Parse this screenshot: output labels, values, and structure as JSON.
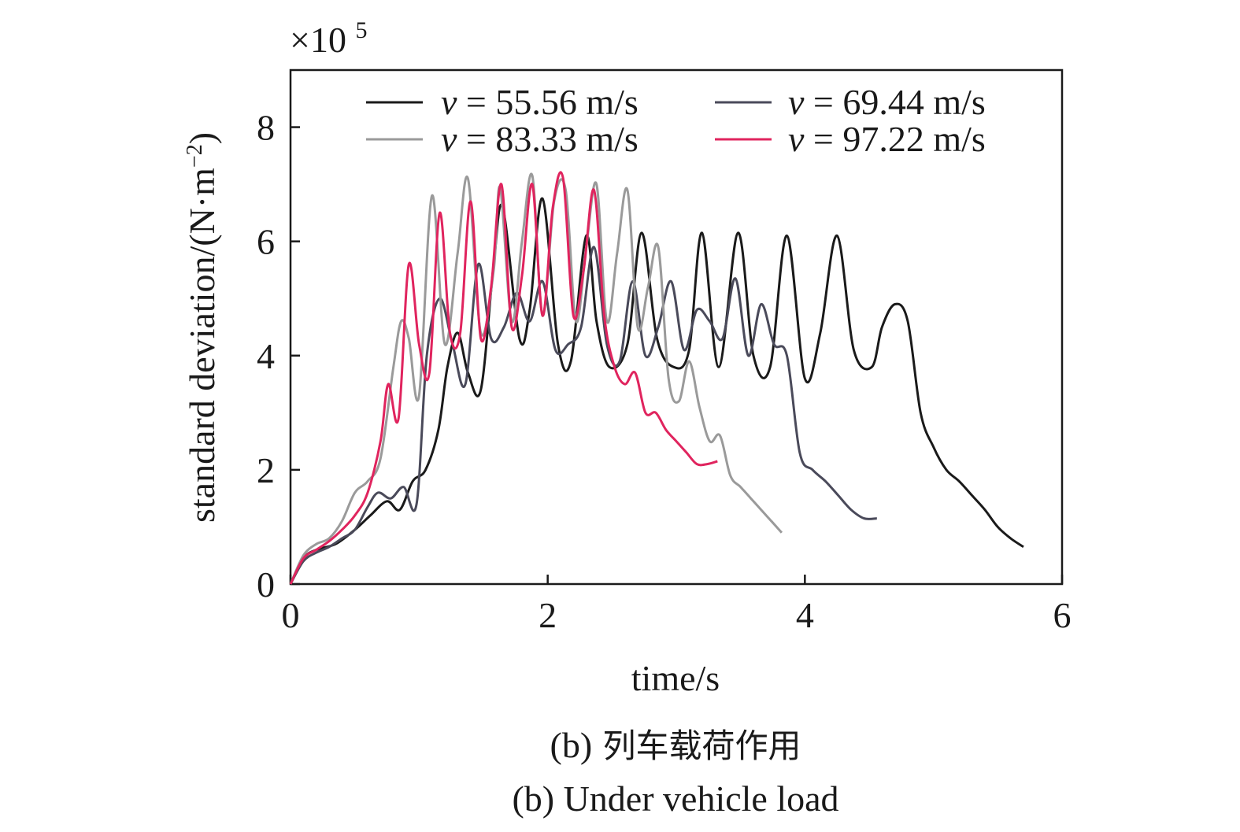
{
  "chart_data": {
    "type": "line",
    "scale_label": "×10",
    "scale_exponent": "5",
    "xlabel": "time/s",
    "ylabel": "standard deviation/(N·m",
    "ylabel_exponent": "−2",
    "ylabel_close": ")",
    "xlim": [
      0,
      6
    ],
    "ylim": [
      0,
      9
    ],
    "xticks": [
      "0",
      "2",
      "4",
      "6"
    ],
    "yticks": [
      "0",
      "2",
      "4",
      "6",
      "8"
    ],
    "xtick_values": [
      0,
      2,
      4,
      6
    ],
    "ytick_values": [
      0,
      2,
      4,
      6,
      8
    ],
    "grid": false,
    "legend_position": "top",
    "legend": [
      {
        "var": "v",
        "text": " = 55.56 m/s",
        "color": "#1a1a1a"
      },
      {
        "var": "v",
        "text": " = 69.44 m/s",
        "color": "#4a4a5a"
      },
      {
        "var": "v",
        "text": " = 83.33 m/s",
        "color": "#9a9a9a"
      },
      {
        "var": "v",
        "text": " = 97.22 m/s",
        "color": "#e0245e"
      }
    ],
    "series": [
      {
        "name": "v = 55.56 m/s",
        "color": "#1a1a1a",
        "x": [
          0,
          0.1,
          0.2,
          0.35,
          0.5,
          0.62,
          0.75,
          0.85,
          0.95,
          1.05,
          1.15,
          1.22,
          1.3,
          1.38,
          1.48,
          1.58,
          1.65,
          1.78,
          1.86,
          1.96,
          2.08,
          2.18,
          2.3,
          2.38,
          2.48,
          2.62,
          2.73,
          2.85,
          2.98,
          3.1,
          3.2,
          3.33,
          3.48,
          3.6,
          3.73,
          3.86,
          4.0,
          4.12,
          4.25,
          4.38,
          4.52,
          4.6,
          4.7,
          4.8,
          4.9,
          5.0,
          5.1,
          5.2,
          5.3,
          5.4,
          5.5,
          5.6,
          5.7
        ],
        "y": [
          0,
          0.45,
          0.6,
          0.7,
          0.95,
          1.2,
          1.45,
          1.3,
          1.8,
          2.0,
          2.7,
          3.8,
          4.4,
          3.7,
          3.4,
          5.6,
          6.6,
          4.3,
          4.8,
          6.75,
          4.2,
          3.9,
          6.1,
          4.6,
          3.8,
          4.2,
          6.15,
          4.3,
          3.8,
          4.1,
          6.15,
          3.8,
          6.15,
          4.0,
          3.8,
          6.1,
          3.6,
          4.4,
          6.1,
          4.1,
          3.8,
          4.5,
          4.9,
          4.6,
          3.0,
          2.4,
          2.0,
          1.8,
          1.55,
          1.3,
          1.0,
          0.8,
          0.65
        ]
      },
      {
        "name": "v = 69.44 m/s",
        "color": "#4a4a5a",
        "x": [
          0,
          0.1,
          0.2,
          0.3,
          0.4,
          0.5,
          0.6,
          0.68,
          0.78,
          0.88,
          0.98,
          1.06,
          1.16,
          1.26,
          1.36,
          1.46,
          1.56,
          1.66,
          1.76,
          1.86,
          1.96,
          2.06,
          2.16,
          2.26,
          2.36,
          2.46,
          2.56,
          2.66,
          2.76,
          2.86,
          2.96,
          3.06,
          3.16,
          3.26,
          3.36,
          3.46,
          3.56,
          3.66,
          3.76,
          3.86,
          3.96,
          4.06,
          4.16,
          4.26,
          4.36,
          4.46,
          4.56
        ],
        "y": [
          0,
          0.4,
          0.55,
          0.65,
          0.8,
          0.95,
          1.35,
          1.6,
          1.5,
          1.7,
          1.4,
          4.0,
          5.0,
          4.2,
          3.5,
          5.6,
          4.3,
          4.5,
          5.1,
          4.6,
          5.3,
          4.1,
          4.2,
          4.5,
          5.9,
          4.2,
          3.9,
          5.3,
          4.0,
          4.5,
          5.3,
          4.1,
          4.8,
          4.6,
          4.3,
          5.35,
          4.0,
          4.9,
          4.2,
          4.0,
          2.3,
          2.0,
          1.8,
          1.55,
          1.3,
          1.15,
          1.15
        ]
      },
      {
        "name": "v = 83.33 m/s",
        "color": "#9a9a9a",
        "x": [
          0,
          0.1,
          0.2,
          0.3,
          0.4,
          0.5,
          0.6,
          0.7,
          0.8,
          0.86,
          0.92,
          1.0,
          1.1,
          1.2,
          1.3,
          1.38,
          1.48,
          1.58,
          1.63,
          1.72,
          1.8,
          1.88,
          1.96,
          2.05,
          2.14,
          2.22,
          2.3,
          2.38,
          2.46,
          2.54,
          2.62,
          2.7,
          2.78,
          2.86,
          2.94,
          3.02,
          3.1,
          3.18,
          3.26,
          3.34,
          3.42,
          3.5,
          3.58,
          3.66,
          3.74,
          3.82
        ],
        "y": [
          0,
          0.5,
          0.7,
          0.8,
          1.1,
          1.6,
          1.8,
          2.2,
          3.8,
          4.6,
          4.3,
          3.3,
          6.8,
          4.2,
          5.8,
          7.1,
          4.4,
          5.5,
          6.95,
          4.6,
          6.0,
          7.15,
          4.7,
          6.7,
          6.9,
          4.6,
          5.9,
          7.0,
          4.6,
          5.8,
          6.9,
          4.5,
          5.2,
          5.9,
          3.6,
          3.2,
          3.9,
          3.1,
          2.5,
          2.6,
          1.9,
          1.7,
          1.5,
          1.3,
          1.1,
          0.9
        ]
      },
      {
        "name": "v = 97.22 m/s",
        "color": "#e0245e",
        "x": [
          0,
          0.1,
          0.2,
          0.3,
          0.4,
          0.5,
          0.6,
          0.7,
          0.76,
          0.84,
          0.92,
          1.0,
          1.08,
          1.16,
          1.24,
          1.32,
          1.4,
          1.48,
          1.56,
          1.64,
          1.72,
          1.8,
          1.88,
          1.96,
          2.04,
          2.12,
          2.2,
          2.28,
          2.36,
          2.44,
          2.52,
          2.6,
          2.68,
          2.76,
          2.84,
          2.92,
          3.0,
          3.08,
          3.16,
          3.24,
          3.32
        ],
        "y": [
          0,
          0.45,
          0.6,
          0.75,
          0.95,
          1.2,
          1.6,
          2.5,
          3.5,
          2.9,
          5.6,
          4.2,
          3.7,
          6.5,
          4.4,
          4.4,
          6.7,
          4.3,
          5.2,
          7.0,
          4.5,
          5.4,
          7.0,
          4.7,
          6.6,
          7.1,
          4.7,
          5.5,
          6.9,
          4.7,
          3.8,
          3.5,
          3.7,
          3.0,
          3.0,
          2.7,
          2.5,
          2.3,
          2.1,
          2.1,
          2.15
        ]
      }
    ]
  },
  "caption": {
    "line1_label": "(b)",
    "line1_text": " 列车载荷作用",
    "line2": "(b) Under vehicle load"
  }
}
